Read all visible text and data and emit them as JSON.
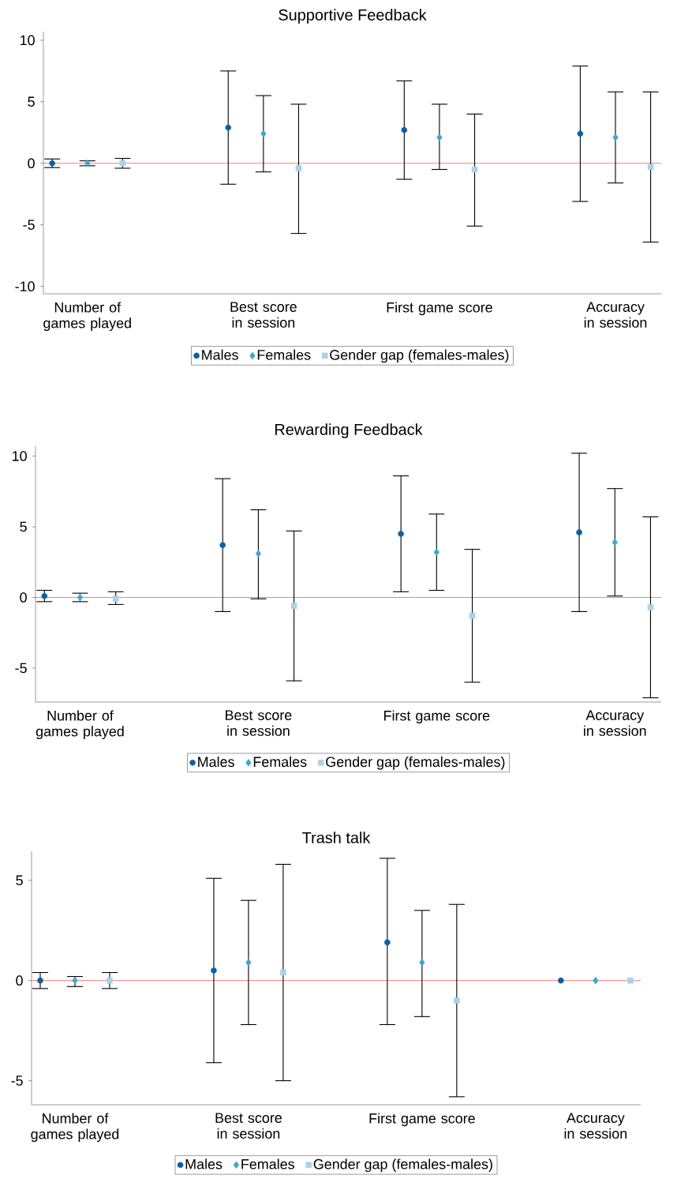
{
  "chart_data": [
    {
      "type": "scatter",
      "title": "Supportive Feedback",
      "categories": [
        "Number of games played",
        "Best score in session",
        "First game score",
        "Accuracy in session"
      ],
      "ylim": [
        -10.6,
        10.7
      ],
      "yticks": [
        -10,
        -5,
        0,
        5,
        10
      ],
      "grid": false,
      "legend": "bottom",
      "ref_lines": [
        {
          "axis": "y",
          "value": 0,
          "color": "#f0605a"
        }
      ],
      "series": [
        {
          "name": "Males",
          "color": "#0b5fa5",
          "marker": "circle",
          "values": [
            0,
            2.9,
            2.7,
            2.4
          ],
          "errors": [
            [
              -0.35,
              0.35
            ],
            [
              -1.7,
              7.5
            ],
            [
              -1.3,
              6.7
            ],
            [
              -3.1,
              7.9
            ]
          ]
        },
        {
          "name": "Females",
          "color": "#3ea5d5",
          "marker": "diamond",
          "values": [
            0,
            2.4,
            2.1,
            2.1
          ],
          "errors": [
            [
              -0.2,
              0.2
            ],
            [
              -0.7,
              5.5
            ],
            [
              -0.5,
              4.8
            ],
            [
              -1.6,
              5.8
            ]
          ]
        },
        {
          "name": "Gender gap (females-males)",
          "color": "#a8d3e8",
          "marker": "square",
          "values": [
            0,
            -0.4,
            -0.5,
            -0.3
          ],
          "errors": [
            [
              -0.4,
              0.4
            ],
            [
              -5.7,
              4.8
            ],
            [
              -5.1,
              4.0
            ],
            [
              -6.4,
              5.8
            ]
          ]
        }
      ]
    },
    {
      "type": "scatter",
      "title": "Rewarding Feedback",
      "categories": [
        "Number of games played",
        "Best score in session",
        "First game score",
        "Accuracy in session"
      ],
      "ylim": [
        -7.4,
        10.7
      ],
      "yticks": [
        -5,
        0,
        5,
        10
      ],
      "grid": false,
      "legend": "bottom",
      "ref_lines": [
        {
          "axis": "y",
          "value": 0,
          "color": "#f0605a"
        }
      ],
      "series": [
        {
          "name": "Males",
          "color": "#0b5fa5",
          "marker": "circle",
          "values": [
            0.1,
            3.7,
            4.5,
            4.6
          ],
          "errors": [
            [
              -0.3,
              0.5
            ],
            [
              -1.0,
              8.4
            ],
            [
              0.4,
              8.6
            ],
            [
              -1.0,
              10.2
            ]
          ]
        },
        {
          "name": "Females",
          "color": "#3ea5d5",
          "marker": "diamond",
          "values": [
            0,
            3.1,
            3.2,
            3.9
          ],
          "errors": [
            [
              -0.3,
              0.3
            ],
            [
              -0.1,
              6.2
            ],
            [
              0.5,
              5.9
            ],
            [
              0.1,
              7.7
            ]
          ]
        },
        {
          "name": "Gender gap (females-males)",
          "color": "#a8d3e8",
          "marker": "square",
          "values": [
            -0.1,
            -0.6,
            -1.3,
            -0.7
          ],
          "errors": [
            [
              -0.5,
              0.4
            ],
            [
              -5.9,
              4.7
            ],
            [
              -6.0,
              3.4
            ],
            [
              -7.1,
              5.7
            ]
          ]
        }
      ]
    },
    {
      "type": "scatter",
      "title": "Trash talk",
      "categories": [
        "Number of games played",
        "Best score in session",
        "First game score",
        "Accuracy in session"
      ],
      "ylim": [
        -6.2,
        6.45
      ],
      "yticks": [
        -5,
        0,
        5
      ],
      "grid": false,
      "legend": "bottom",
      "ref_lines": [
        {
          "axis": "y",
          "value": 0,
          "color": "#f0605a"
        }
      ],
      "series": [
        {
          "name": "Males",
          "color": "#0b5fa5",
          "marker": "circle",
          "values": [
            0,
            0.5,
            1.9,
            0
          ],
          "errors": [
            [
              -0.4,
              0.4
            ],
            [
              -4.1,
              5.1
            ],
            [
              -2.2,
              6.1
            ],
            null
          ]
        },
        {
          "name": "Females",
          "color": "#3ea5d5",
          "marker": "diamond",
          "values": [
            0,
            0.9,
            0.9,
            0
          ],
          "errors": [
            [
              -0.3,
              0.2
            ],
            [
              -2.2,
              4.0
            ],
            [
              -1.8,
              3.5
            ],
            null
          ]
        },
        {
          "name": "Gender gap (females-males)",
          "color": "#a8d3e8",
          "marker": "square",
          "values": [
            0,
            0.4,
            -1.0,
            0
          ],
          "errors": [
            [
              -0.4,
              0.4
            ],
            [
              -5.0,
              5.8
            ],
            [
              -5.8,
              3.8
            ],
            null
          ]
        }
      ]
    }
  ]
}
